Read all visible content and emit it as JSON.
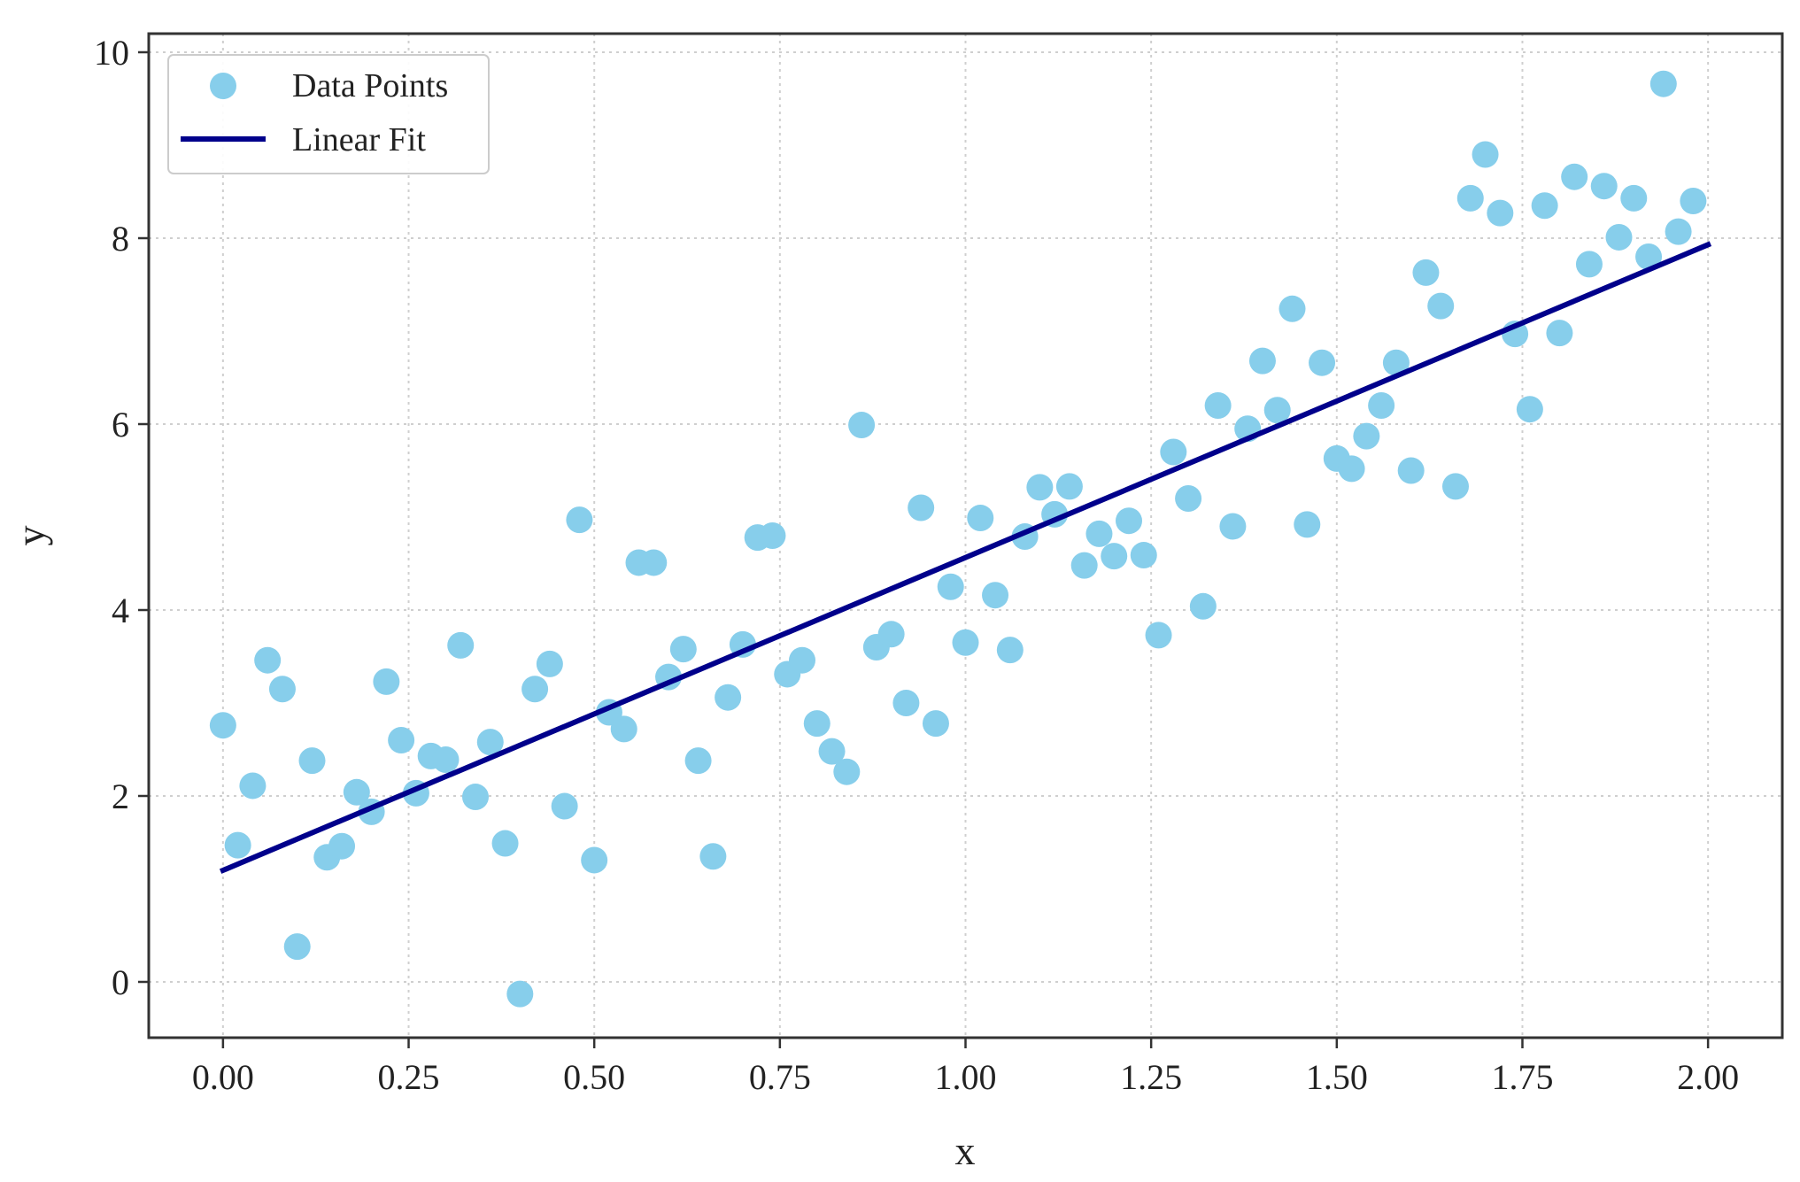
{
  "chart_data": {
    "type": "scatter",
    "title": "",
    "xlabel": "x",
    "ylabel": "y",
    "xlim": [
      -0.1,
      2.1
    ],
    "ylim": [
      -0.6,
      10.2
    ],
    "xticks": [
      0.0,
      0.25,
      0.5,
      0.75,
      1.0,
      1.25,
      1.5,
      1.75,
      2.0
    ],
    "xtick_labels": [
      "0.00",
      "0.25",
      "0.50",
      "0.75",
      "1.00",
      "1.25",
      "1.50",
      "1.75",
      "2.00"
    ],
    "yticks": [
      0,
      2,
      4,
      6,
      8,
      10
    ],
    "ytick_labels": [
      "0",
      "2",
      "4",
      "6",
      "8",
      "10"
    ],
    "grid": true,
    "legend_position": "top-left",
    "series": [
      {
        "name": "Data Points",
        "kind": "scatter",
        "color": "#87ceeb",
        "points": [
          [
            0.0,
            2.76
          ],
          [
            0.02,
            1.47
          ],
          [
            0.04,
            2.11
          ],
          [
            0.06,
            3.46
          ],
          [
            0.08,
            3.15
          ],
          [
            0.1,
            0.38
          ],
          [
            0.12,
            2.38
          ],
          [
            0.14,
            1.34
          ],
          [
            0.16,
            1.46
          ],
          [
            0.18,
            2.04
          ],
          [
            0.2,
            1.83
          ],
          [
            0.22,
            3.23
          ],
          [
            0.24,
            2.6
          ],
          [
            0.26,
            2.03
          ],
          [
            0.28,
            2.43
          ],
          [
            0.3,
            2.39
          ],
          [
            0.32,
            3.62
          ],
          [
            0.34,
            1.99
          ],
          [
            0.36,
            2.58
          ],
          [
            0.38,
            1.49
          ],
          [
            0.4,
            -0.13
          ],
          [
            0.42,
            3.15
          ],
          [
            0.44,
            3.42
          ],
          [
            0.46,
            1.89
          ],
          [
            0.48,
            4.97
          ],
          [
            0.5,
            1.31
          ],
          [
            0.52,
            2.9
          ],
          [
            0.54,
            2.72
          ],
          [
            0.56,
            4.51
          ],
          [
            0.58,
            4.51
          ],
          [
            0.6,
            3.28
          ],
          [
            0.62,
            3.58
          ],
          [
            0.64,
            2.38
          ],
          [
            0.66,
            1.35
          ],
          [
            0.68,
            3.06
          ],
          [
            0.7,
            3.63
          ],
          [
            0.72,
            4.78
          ],
          [
            0.74,
            4.8
          ],
          [
            0.76,
            3.31
          ],
          [
            0.78,
            3.46
          ],
          [
            0.8,
            2.78
          ],
          [
            0.82,
            2.48
          ],
          [
            0.84,
            2.26
          ],
          [
            0.86,
            5.99
          ],
          [
            0.88,
            3.6
          ],
          [
            0.9,
            3.74
          ],
          [
            0.92,
            3.0
          ],
          [
            0.94,
            5.1
          ],
          [
            0.96,
            2.78
          ],
          [
            0.98,
            4.25
          ],
          [
            1.0,
            3.65
          ],
          [
            1.02,
            4.99
          ],
          [
            1.04,
            4.16
          ],
          [
            1.06,
            3.57
          ],
          [
            1.08,
            4.79
          ],
          [
            1.1,
            5.32
          ],
          [
            1.12,
            5.03
          ],
          [
            1.14,
            5.33
          ],
          [
            1.16,
            4.48
          ],
          [
            1.18,
            4.82
          ],
          [
            1.2,
            4.58
          ],
          [
            1.22,
            4.96
          ],
          [
            1.24,
            4.59
          ],
          [
            1.26,
            3.73
          ],
          [
            1.28,
            5.7
          ],
          [
            1.3,
            5.2
          ],
          [
            1.32,
            4.04
          ],
          [
            1.34,
            6.2
          ],
          [
            1.36,
            4.9
          ],
          [
            1.38,
            5.95
          ],
          [
            1.4,
            6.68
          ],
          [
            1.42,
            6.15
          ],
          [
            1.44,
            7.24
          ],
          [
            1.46,
            4.92
          ],
          [
            1.48,
            6.66
          ],
          [
            1.5,
            5.63
          ],
          [
            1.52,
            5.52
          ],
          [
            1.54,
            5.87
          ],
          [
            1.56,
            6.2
          ],
          [
            1.58,
            6.66
          ],
          [
            1.6,
            5.5
          ],
          [
            1.62,
            7.63
          ],
          [
            1.64,
            7.27
          ],
          [
            1.66,
            5.33
          ],
          [
            1.68,
            8.43
          ],
          [
            1.7,
            8.9
          ],
          [
            1.72,
            8.27
          ],
          [
            1.74,
            6.97
          ],
          [
            1.76,
            6.16
          ],
          [
            1.78,
            8.35
          ],
          [
            1.8,
            6.98
          ],
          [
            1.82,
            8.66
          ],
          [
            1.84,
            7.72
          ],
          [
            1.86,
            8.56
          ],
          [
            1.88,
            8.01
          ],
          [
            1.9,
            8.43
          ],
          [
            1.92,
            7.8
          ],
          [
            1.94,
            9.66
          ],
          [
            1.96,
            8.07
          ],
          [
            1.98,
            8.4
          ]
        ]
      },
      {
        "name": "Linear Fit",
        "kind": "line",
        "color": "#00008b",
        "x": [
          0.0,
          2.0
        ],
        "y": [
          1.2,
          7.93
        ]
      }
    ]
  }
}
